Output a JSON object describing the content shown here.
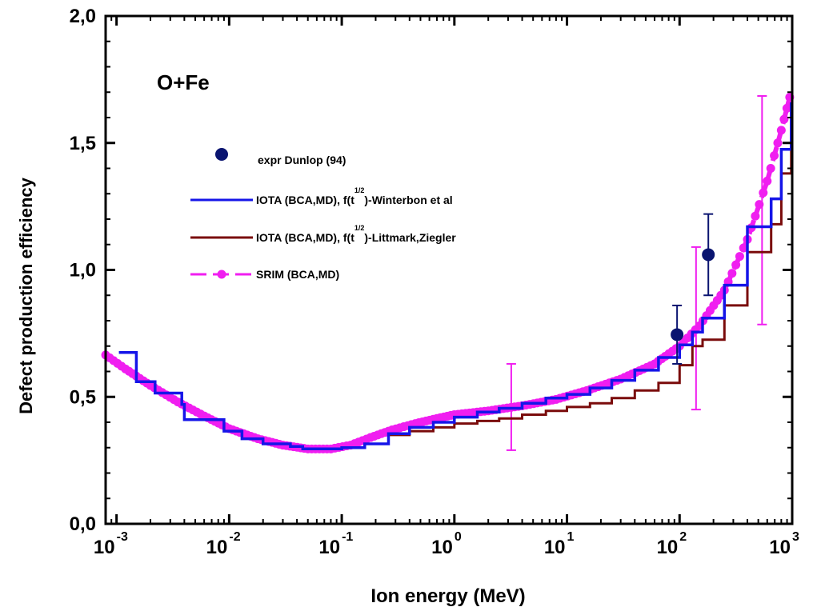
{
  "chart_data": {
    "type": "line",
    "annotation": "O+Fe",
    "xlabel": "Ion energy (MeV)",
    "ylabel": "Defect production efficiency",
    "x_scale": "log",
    "xlim": [
      0.0008,
      1000
    ],
    "ylim": [
      0.0,
      2.0
    ],
    "x_ticks": [
      {
        "value": 0.001,
        "base": "10",
        "exp": "-3"
      },
      {
        "value": 0.01,
        "base": "10",
        "exp": "-2"
      },
      {
        "value": 0.1,
        "base": "10",
        "exp": "-1"
      },
      {
        "value": 1,
        "base": "10",
        "exp": "0"
      },
      {
        "value": 10,
        "base": "10",
        "exp": "1"
      },
      {
        "value": 100,
        "base": "10",
        "exp": "2"
      },
      {
        "value": 1000,
        "base": "10",
        "exp": "3"
      }
    ],
    "y_ticks": [
      {
        "value": 0.0,
        "label": "0,0"
      },
      {
        "value": 0.5,
        "label": "0,5"
      },
      {
        "value": 1.0,
        "label": "1,0"
      },
      {
        "value": 1.5,
        "label": "1,5"
      },
      {
        "value": 2.0,
        "label": "2,0"
      }
    ],
    "grid": false,
    "legend_position": "upper-left",
    "series": [
      {
        "name": "expr Dunlop (94)",
        "style": "points-errorbars",
        "color": "#0a1470",
        "points": [
          {
            "x": 95,
            "y": 0.745,
            "err": 0.115
          },
          {
            "x": 180,
            "y": 1.06,
            "err": 0.16
          }
        ]
      },
      {
        "name": "IOTA (BCA,MD), f(t^1/2)-Winterbon et al",
        "legend_text": "IOTA (BCA,MD), f(t",
        "legend_sup": "1/2",
        "legend_suffix": ")-Winterbon et al",
        "style": "step",
        "color": "#1515e8",
        "points": [
          {
            "x": 0.00115,
            "y": 0.675
          },
          {
            "x": 0.0015,
            "y": 0.56
          },
          {
            "x": 0.0022,
            "y": 0.515
          },
          {
            "x": 0.0038,
            "y": 0.47
          },
          {
            "x": 0.004,
            "y": 0.41
          },
          {
            "x": 0.009,
            "y": 0.365
          },
          {
            "x": 0.013,
            "y": 0.335
          },
          {
            "x": 0.02,
            "y": 0.315
          },
          {
            "x": 0.035,
            "y": 0.305
          },
          {
            "x": 0.045,
            "y": 0.295
          },
          {
            "x": 0.1,
            "y": 0.3
          },
          {
            "x": 0.16,
            "y": 0.315
          },
          {
            "x": 0.26,
            "y": 0.355
          },
          {
            "x": 0.4,
            "y": 0.38
          },
          {
            "x": 0.65,
            "y": 0.4
          },
          {
            "x": 1.0,
            "y": 0.42
          },
          {
            "x": 1.6,
            "y": 0.44
          },
          {
            "x": 2.5,
            "y": 0.455
          },
          {
            "x": 4.0,
            "y": 0.475
          },
          {
            "x": 6.5,
            "y": 0.495
          },
          {
            "x": 10,
            "y": 0.51
          },
          {
            "x": 16,
            "y": 0.535
          },
          {
            "x": 25,
            "y": 0.565
          },
          {
            "x": 40,
            "y": 0.605
          },
          {
            "x": 65,
            "y": 0.655
          },
          {
            "x": 100,
            "y": 0.705
          },
          {
            "x": 130,
            "y": 0.755
          },
          {
            "x": 160,
            "y": 0.81
          },
          {
            "x": 250,
            "y": 0.94
          },
          {
            "x": 400,
            "y": 1.17
          },
          {
            "x": 650,
            "y": 1.28
          },
          {
            "x": 800,
            "y": 1.475
          },
          {
            "x": 980,
            "y": 1.66
          }
        ]
      },
      {
        "name": "IOTA (BCA,MD), f(t^1/2)-Littmark,Ziegler",
        "legend_text": "IOTA (BCA,MD), f(t",
        "legend_sup": "1/2",
        "legend_suffix": ")-Littmark,Ziegler",
        "style": "step",
        "color": "#7a0b0b",
        "points": [
          {
            "x": 0.26,
            "y": 0.35
          },
          {
            "x": 0.4,
            "y": 0.365
          },
          {
            "x": 0.65,
            "y": 0.38
          },
          {
            "x": 1.0,
            "y": 0.395
          },
          {
            "x": 1.6,
            "y": 0.405
          },
          {
            "x": 2.5,
            "y": 0.415
          },
          {
            "x": 4.0,
            "y": 0.43
          },
          {
            "x": 6.5,
            "y": 0.445
          },
          {
            "x": 10,
            "y": 0.46
          },
          {
            "x": 16,
            "y": 0.475
          },
          {
            "x": 25,
            "y": 0.495
          },
          {
            "x": 40,
            "y": 0.525
          },
          {
            "x": 65,
            "y": 0.555
          },
          {
            "x": 100,
            "y": 0.625
          },
          {
            "x": 130,
            "y": 0.7
          },
          {
            "x": 160,
            "y": 0.725
          },
          {
            "x": 250,
            "y": 0.86
          },
          {
            "x": 400,
            "y": 1.07
          },
          {
            "x": 650,
            "y": 1.18
          },
          {
            "x": 800,
            "y": 1.38
          },
          {
            "x": 980,
            "y": 1.5
          }
        ]
      },
      {
        "name": "SRIM (BCA,MD)",
        "style": "dashed-line-markers",
        "color": "#f01ef0",
        "points": [
          {
            "x": 0.0008,
            "y": 0.665
          },
          {
            "x": 0.0012,
            "y": 0.61
          },
          {
            "x": 0.002,
            "y": 0.545
          },
          {
            "x": 0.0035,
            "y": 0.48
          },
          {
            "x": 0.006,
            "y": 0.425
          },
          {
            "x": 0.01,
            "y": 0.375
          },
          {
            "x": 0.018,
            "y": 0.335
          },
          {
            "x": 0.03,
            "y": 0.31
          },
          {
            "x": 0.05,
            "y": 0.295
          },
          {
            "x": 0.08,
            "y": 0.295
          },
          {
            "x": 0.12,
            "y": 0.31
          },
          {
            "x": 0.18,
            "y": 0.34
          },
          {
            "x": 0.28,
            "y": 0.37
          },
          {
            "x": 0.45,
            "y": 0.395
          },
          {
            "x": 0.7,
            "y": 0.415
          },
          {
            "x": 1.0,
            "y": 0.43
          },
          {
            "x": 2.0,
            "y": 0.445
          },
          {
            "x": 4.0,
            "y": 0.465
          },
          {
            "x": 8.0,
            "y": 0.49
          },
          {
            "x": 15,
            "y": 0.525
          },
          {
            "x": 30,
            "y": 0.57
          },
          {
            "x": 60,
            "y": 0.63
          },
          {
            "x": 100,
            "y": 0.7
          },
          {
            "x": 150,
            "y": 0.78
          },
          {
            "x": 250,
            "y": 0.92
          },
          {
            "x": 400,
            "y": 1.12
          },
          {
            "x": 600,
            "y": 1.35
          },
          {
            "x": 800,
            "y": 1.55
          },
          {
            "x": 950,
            "y": 1.68
          }
        ],
        "errorbars": [
          {
            "x": 3.2,
            "y": 0.46,
            "err": 0.17
          },
          {
            "x": 140,
            "y": 0.77,
            "err": 0.32
          },
          {
            "x": 540,
            "y": 1.235,
            "err": 0.45
          }
        ]
      }
    ]
  }
}
